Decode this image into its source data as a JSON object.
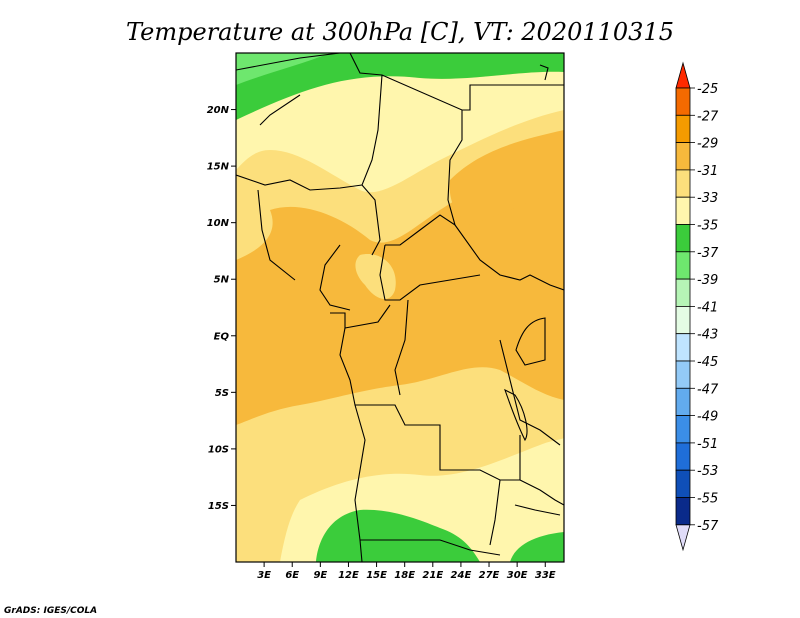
{
  "chart_data": {
    "type": "heatmap",
    "title": "Temperature at 300hPa [C], VT: 2020110315",
    "x_ticks": [
      "3E",
      "6E",
      "9E",
      "12E",
      "15E",
      "18E",
      "21E",
      "24E",
      "27E",
      "30E",
      "33E"
    ],
    "x_tick_values": [
      3,
      6,
      9,
      12,
      15,
      18,
      21,
      24,
      27,
      30,
      33
    ],
    "y_ticks": [
      "20N",
      "15N",
      "10N",
      "5N",
      "EQ",
      "5S",
      "10S",
      "15S"
    ],
    "y_tick_values": [
      20,
      15,
      10,
      5,
      0,
      -5,
      -10,
      -15
    ],
    "xlim": [
      0,
      35
    ],
    "ylim": [
      -20,
      25
    ],
    "colorbar": {
      "orientation": "vertical",
      "placement": "right",
      "labels": [
        "-25",
        "-27",
        "-29",
        "-31",
        "-33",
        "-35",
        "-37",
        "-39",
        "-41",
        "-43",
        "-45",
        "-47",
        "-49",
        "-51",
        "-53",
        "-55",
        "-57"
      ],
      "colors": [
        "#ff2a00",
        "#f46a00",
        "#f59b00",
        "#f7b93c",
        "#fcdf7c",
        "#fff6ad",
        "#3bcc3b",
        "#6ee76e",
        "#b6f5b6",
        "#e4fce4",
        "#bfe4ff",
        "#93caf7",
        "#62abee",
        "#3b8ee7",
        "#1f6ed9",
        "#0f4fb8",
        "#0a2a8a",
        "#08106a",
        "#e0dcf8"
      ]
    },
    "credit": "GrADS: IGES/COLA"
  }
}
